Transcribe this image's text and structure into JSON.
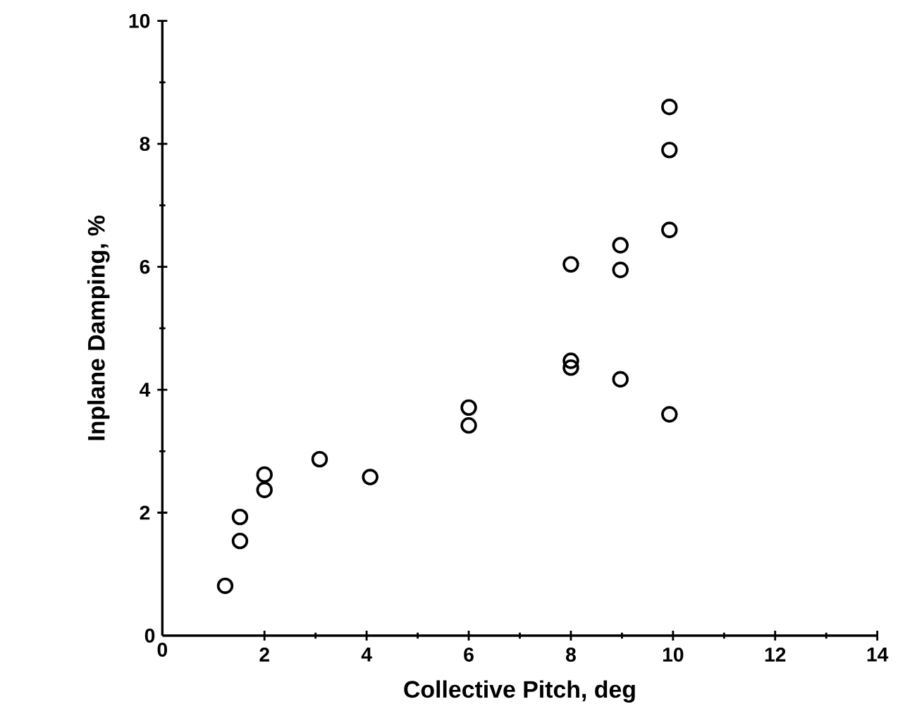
{
  "chart_data": {
    "type": "scatter",
    "xlabel": "Collective Pitch, deg",
    "ylabel": "Inplane Damping, %",
    "x": [
      1.23,
      1.52,
      1.52,
      2.0,
      2.0,
      3.08,
      4.07,
      6.0,
      6.0,
      8.0,
      8.0,
      8.0,
      8.97,
      8.97,
      8.97,
      9.93,
      9.93,
      9.93,
      9.93
    ],
    "values": [
      0.81,
      1.54,
      1.93,
      2.37,
      2.62,
      2.87,
      2.58,
      3.71,
      3.42,
      4.47,
      4.36,
      6.04,
      6.35,
      5.95,
      4.17,
      8.6,
      7.9,
      6.6,
      3.6
    ],
    "color": "#000000",
    "marker": "circle",
    "xlim": [
      0,
      14
    ],
    "xticks": [
      0,
      2,
      4,
      6,
      8,
      10,
      12,
      14
    ],
    "ylim": [
      0,
      10
    ],
    "yticks": [
      0,
      2,
      4,
      6,
      8,
      10
    ]
  }
}
